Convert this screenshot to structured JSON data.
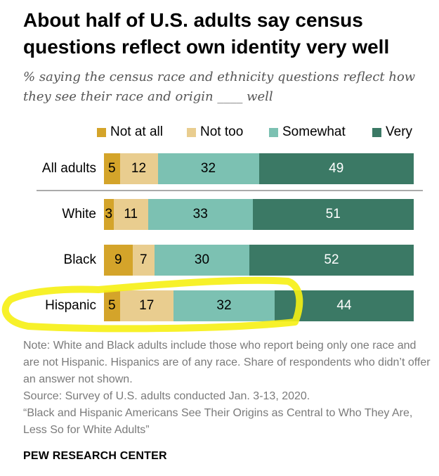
{
  "title": "About half of U.S. adults say census questions reflect own identity very well",
  "subtitle": "% saying the census race and ethnicity questions reflect how they see their race and origin ____ well",
  "colors": {
    "not_at_all": "#d4a42a",
    "not_too": "#e9cd8f",
    "somewhat": "#7cc1b2",
    "very": "#3b7965",
    "highlight": "#f6f013"
  },
  "chart_data": {
    "type": "bar",
    "orientation": "horizontal",
    "stacked": true,
    "categories": [
      "All adults",
      "White",
      "Black",
      "Hispanic"
    ],
    "series": [
      {
        "name": "Not at all",
        "values": [
          5,
          3,
          9,
          5
        ]
      },
      {
        "name": "Not too",
        "values": [
          12,
          11,
          7,
          17
        ]
      },
      {
        "name": "Somewhat",
        "values": [
          32,
          33,
          30,
          32
        ]
      },
      {
        "name": "Very",
        "values": [
          49,
          51,
          52,
          44
        ]
      }
    ],
    "legend_position": "top",
    "grid": false,
    "highlighted_category": "Hispanic"
  },
  "notes": {
    "note": "Note: White and Black adults include those who report being only one race and are not Hispanic. Hispanics are of any race. Share of respondents who didn’t offer an answer not shown.",
    "source": "Source: Survey of U.S. adults conducted Jan. 3-13, 2020.",
    "report": "“Black and Hispanic Americans See Their Origins as Central to Who They Are, Less So for White Adults”"
  },
  "brand": "PEW RESEARCH CENTER"
}
